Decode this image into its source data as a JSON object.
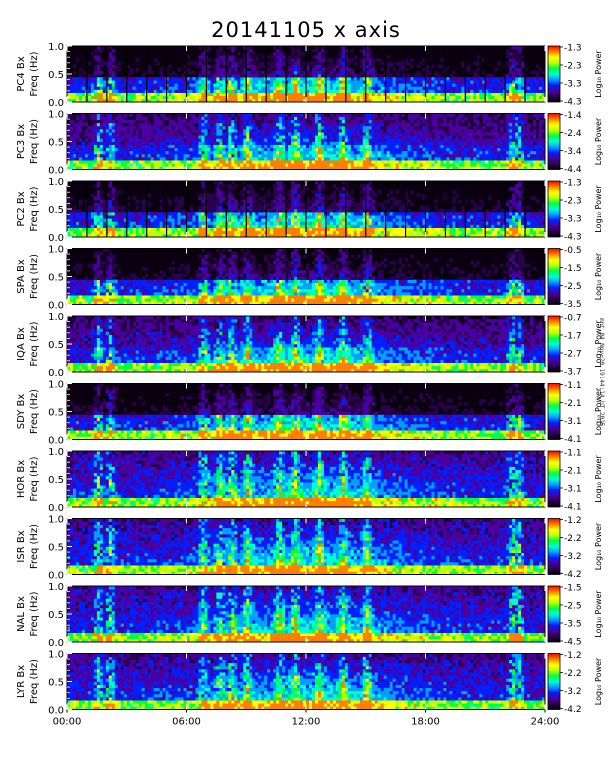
{
  "chart_data": {
    "type": "heatmap",
    "title": "20141105 x axis",
    "x_ticks": [
      "00:00",
      "06:00",
      "12:00",
      "18:00",
      "24:00"
    ],
    "x_range_hours": [
      0,
      24
    ],
    "y_ticks": [
      "0.0",
      "0.5",
      "1.0"
    ],
    "y_range_hz": [
      0,
      1.0
    ],
    "colorbar_label": "Log₁₀ Power",
    "colormap": [
      "#000000",
      "#2b0050",
      "#4a00a0",
      "#0020ff",
      "#00a0ff",
      "#00ffd0",
      "#00ff40",
      "#c0ff00",
      "#ffff00",
      "#ff8000",
      "#ff0000"
    ],
    "credit": "mnt 04 Nov 20 19:44:14 UT 2015",
    "panels": [
      {
        "label": "PC4 Bx",
        "ylabel": "Freq (Hz)",
        "cbar_ticks": [
          "-1.3",
          "-2.3",
          "-3.3",
          "-4.3"
        ],
        "clim": [
          -4.3,
          -1.3
        ]
      },
      {
        "label": "PC3 Bx",
        "ylabel": "Freq (Hz)",
        "cbar_ticks": [
          "-1.4",
          "-2.4",
          "-3.4",
          "-4.4"
        ],
        "clim": [
          -4.4,
          -1.4
        ]
      },
      {
        "label": "PC2 Bx",
        "ylabel": "Freq (Hz)",
        "cbar_ticks": [
          "-1.3",
          "-2.3",
          "-3.3",
          "-4.3"
        ],
        "clim": [
          -4.3,
          -1.3
        ]
      },
      {
        "label": "SPA Bx",
        "ylabel": "Freq (Hz)",
        "cbar_ticks": [
          "-0.5",
          "-1.5",
          "-2.5",
          "-3.5"
        ],
        "clim": [
          -3.5,
          -0.5
        ]
      },
      {
        "label": "IQA Bx",
        "ylabel": "Freq (Hz)",
        "cbar_ticks": [
          "-0.7",
          "-1.7",
          "-2.7",
          "-3.7"
        ],
        "clim": [
          -3.7,
          -0.7
        ]
      },
      {
        "label": "SDY Bx",
        "ylabel": "Freq (Hz)",
        "cbar_ticks": [
          "-1.1",
          "-2.1",
          "-3.1",
          "-4.1"
        ],
        "clim": [
          -4.1,
          -1.1
        ]
      },
      {
        "label": "HOR Bx",
        "ylabel": "Freq (Hz)",
        "cbar_ticks": [
          "-1.1",
          "-2.1",
          "-3.1",
          "-4.1"
        ],
        "clim": [
          -4.1,
          -1.1
        ]
      },
      {
        "label": "ISR Bx",
        "ylabel": "Freq (Hz)",
        "cbar_ticks": [
          "-1.2",
          "-2.2",
          "-3.2",
          "-4.2"
        ],
        "clim": [
          -4.2,
          -1.2
        ]
      },
      {
        "label": "NAL Bx",
        "ylabel": "Freq (Hz)",
        "cbar_ticks": [
          "-1.5",
          "-2.5",
          "-3.5",
          "-4.5"
        ],
        "clim": [
          -4.5,
          -1.5
        ]
      },
      {
        "label": "LYR Bx",
        "ylabel": "Freq (Hz)",
        "cbar_ticks": [
          "-1.2",
          "-2.2",
          "-3.2",
          "-4.2"
        ],
        "clim": [
          -4.2,
          -1.2
        ]
      }
    ]
  }
}
